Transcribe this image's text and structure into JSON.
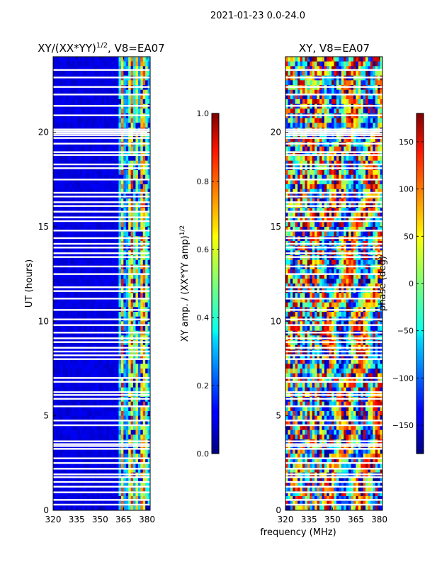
{
  "suptitle": "2021-01-23 0.0-24.0",
  "xlabel_shared": "frequency (MHz)",
  "chart_data": [
    {
      "type": "heatmap",
      "title_main": "XY/(XX*YY)",
      "title_sup": "1/2",
      "title_tail": ", V8=EA07",
      "ylabel": "UT (hours)",
      "xlim": [
        320,
        382
      ],
      "ylim": [
        0,
        24
      ],
      "xticks": [
        320,
        335,
        350,
        365,
        380
      ],
      "yticks": [
        0,
        5,
        10,
        15,
        20
      ],
      "colormap": "jet",
      "colorbar": {
        "label_main": "XY amp. / (XX*YY amp)",
        "label_sup": "1/2",
        "range": [
          0.0,
          1.0
        ],
        "ticks": [
          "0.0",
          "0.2",
          "0.4",
          "0.6",
          "0.8",
          "1.0"
        ]
      },
      "pattern": "amplitude: low (~0.05) below 362 MHz; bright vertical stripes (0.3-0.6) between 362 and 382 MHz"
    },
    {
      "type": "heatmap",
      "title_main": "XY, V8=EA07",
      "ylabel": "",
      "xlim": [
        320,
        382
      ],
      "ylim": [
        0,
        24
      ],
      "xticks": [
        320,
        335,
        350,
        365,
        380
      ],
      "yticks": [
        0,
        5,
        10,
        15,
        20
      ],
      "colormap": "jet",
      "colorbar": {
        "label_main": "phase (deg)",
        "range": [
          -180,
          180
        ],
        "ticks": [
          "−150",
          "−100",
          "−50",
          "0",
          "50",
          "100",
          "150"
        ]
      },
      "pattern": "phase: noisy, full range -180 to 180 degrees"
    }
  ],
  "flagged_gaps_hours": [
    0.3,
    0.55,
    0.95,
    1.25,
    1.5,
    1.75,
    1.9,
    2.2,
    2.5,
    2.75,
    3.25,
    3.4,
    3.5,
    3.65,
    4.5,
    4.75,
    5.5,
    5.9,
    6.1,
    6.25,
    6.8,
    7.0,
    8.0,
    8.2,
    8.4,
    8.6,
    8.9,
    9.1,
    9.4,
    9.8,
    10.1,
    10.6,
    11.2,
    11.6,
    11.8,
    12.5,
    12.9,
    13.4,
    13.6,
    13.9,
    14.1,
    14.4,
    14.8,
    15.3,
    15.5,
    15.8,
    16.1,
    16.3,
    16.6,
    16.8,
    17.5,
    18.1,
    18.3,
    18.8,
    18.95,
    19.4,
    19.7,
    19.85,
    19.95,
    20.05,
    20.15,
    20.9,
    21.4,
    22.0,
    22.4,
    22.9,
    23.3
  ]
}
